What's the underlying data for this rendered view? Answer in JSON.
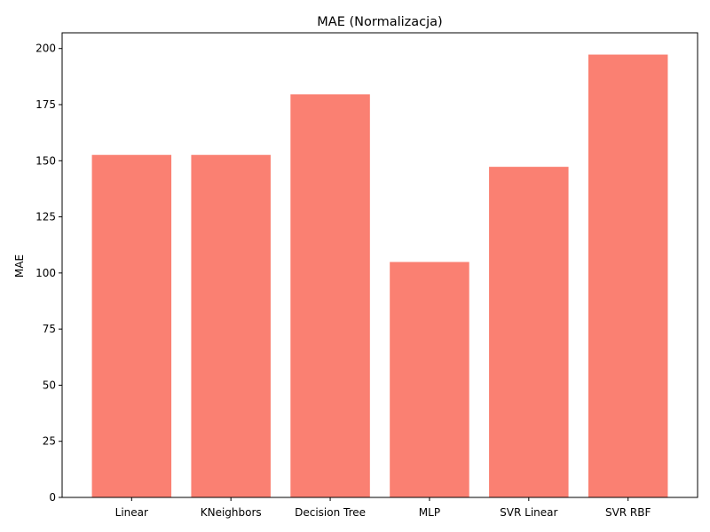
{
  "chart_data": {
    "type": "bar",
    "title": "MAE (Normalizacja)",
    "xlabel": "",
    "ylabel": "MAE",
    "categories": [
      "Linear",
      "KNeighbors",
      "Decision Tree",
      "MLP",
      "SVR Linear",
      "SVR RBF"
    ],
    "values": [
      152.6,
      152.6,
      179.6,
      104.9,
      147.3,
      197.3
    ],
    "ylim": [
      0,
      207
    ],
    "yticks": [
      0,
      25,
      50,
      75,
      100,
      125,
      150,
      175,
      200
    ],
    "grid": false,
    "legend": "none",
    "bar_color": "#fa8072"
  }
}
